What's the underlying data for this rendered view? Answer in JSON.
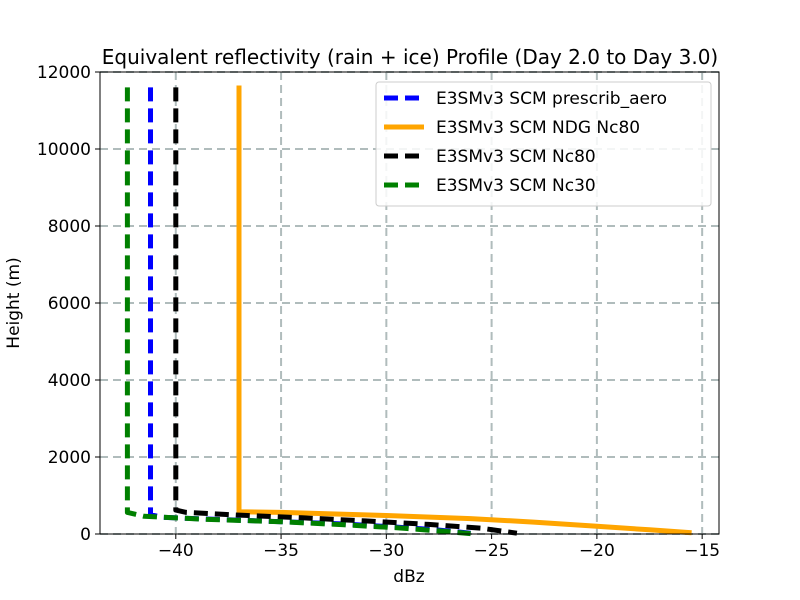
{
  "chart_data": {
    "type": "line",
    "title": "Equivalent reflectivity (rain + ice) Profile (Day 2.0 to Day 3.0)",
    "xlabel": "dBz",
    "ylabel": "Height (m)",
    "xlim": [
      -43.6,
      -14.2
    ],
    "ylim": [
      0,
      12000
    ],
    "xticks": [
      -40,
      -35,
      -30,
      -25,
      -20,
      -15
    ],
    "xtick_labels": [
      "−40",
      "−35",
      "−30",
      "−25",
      "−20",
      "−15"
    ],
    "yticks": [
      0,
      2000,
      4000,
      6000,
      8000,
      10000,
      12000
    ],
    "ytick_labels": [
      "0",
      "2000",
      "4000",
      "6000",
      "8000",
      "10000",
      "12000"
    ],
    "grid": true,
    "legend_position": "top-right",
    "series": [
      {
        "name": "E3SMv3 SCM prescrib_aero",
        "color": "#0000ff",
        "style": "dashed",
        "x": [
          -41.2,
          -41.2,
          -41.2,
          -40.6,
          -38.0,
          -35.0,
          -32.0,
          -29.5,
          -27.5,
          -26.0
        ],
        "y": [
          11600,
          2000,
          500,
          430,
          380,
          320,
          260,
          180,
          100,
          20
        ]
      },
      {
        "name": "E3SMv3 SCM NDG Nc80",
        "color": "#ffa500",
        "style": "solid",
        "x": [
          -37.0,
          -37.0,
          -37.0,
          -35.0,
          -30.0,
          -26.0,
          -23.0,
          -20.0,
          -17.5,
          -15.5
        ],
        "y": [
          11650,
          2000,
          580,
          560,
          480,
          400,
          310,
          200,
          110,
          30
        ]
      },
      {
        "name": "E3SMv3 SCM Nc80",
        "color": "#000000",
        "style": "dashed",
        "x": [
          -40.0,
          -40.0,
          -40.0,
          -39.5,
          -37.0,
          -34.0,
          -31.0,
          -28.0,
          -25.5,
          -23.8
        ],
        "y": [
          11600,
          2000,
          620,
          560,
          490,
          420,
          340,
          250,
          150,
          20
        ]
      },
      {
        "name": "E3SMv3 SCM Nc30",
        "color": "#008000",
        "style": "dashed",
        "x": [
          -42.3,
          -42.3,
          -42.3,
          -41.5,
          -38.5,
          -35.0,
          -32.0,
          -29.5,
          -27.5,
          -26.0
        ],
        "y": [
          11600,
          2000,
          560,
          460,
          380,
          320,
          240,
          160,
          80,
          10
        ]
      }
    ]
  }
}
